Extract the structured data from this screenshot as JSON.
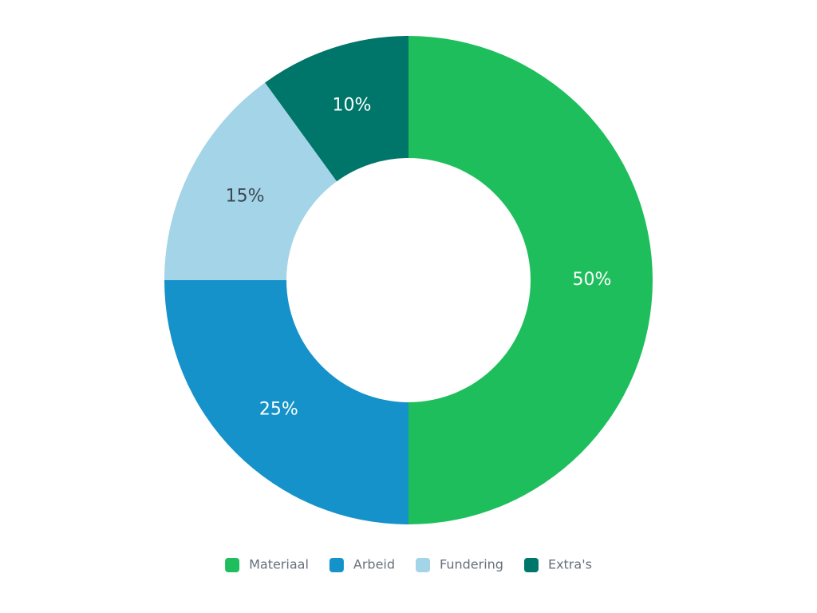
{
  "chart_data": {
    "type": "donut",
    "categories": [
      "Materiaal",
      "Arbeid",
      "Fundering",
      "Extra's"
    ],
    "values": [
      50,
      25,
      15,
      10
    ],
    "value_labels": [
      "50%",
      "25%",
      "15%",
      "10%"
    ],
    "colors": [
      "#1ebe5c",
      "#1592c9",
      "#a3d4e8",
      "#00766a"
    ],
    "legend": "bottom"
  }
}
